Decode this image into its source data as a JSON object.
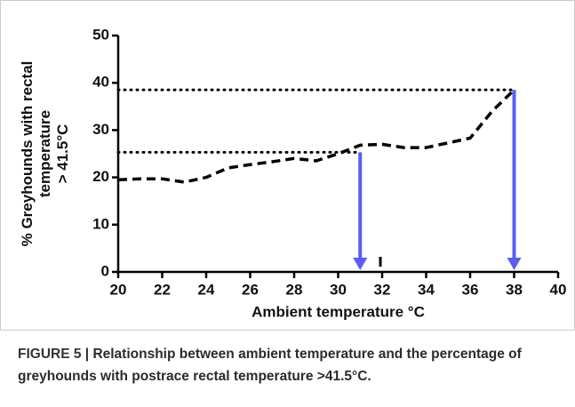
{
  "chart_data": {
    "type": "line",
    "ylabel": [
      "% Greyhounds with rectal",
      "temperature",
      "> 41.5°C"
    ],
    "xlabel": "Ambient temperature °C",
    "x": [
      20,
      21,
      22,
      23,
      24,
      25,
      26,
      27,
      28,
      29,
      30,
      31,
      32,
      33,
      34,
      35,
      36,
      37,
      38
    ],
    "series": [
      {
        "name": "% Greyhounds",
        "color": "#000000",
        "values": [
          19.5,
          19.7,
          19.7,
          19,
          20,
          22,
          22.7,
          23.3,
          24,
          23.5,
          25,
          26.8,
          27,
          26.3,
          26.3,
          27.3,
          28.3,
          34,
          38.5
        ]
      }
    ],
    "annotations": [
      {
        "x": 31,
        "y": 25.3
      },
      {
        "x": 38,
        "y": 38.5
      }
    ],
    "annotation_color": "#5a5cf2",
    "xlim": [
      20,
      40
    ],
    "xticks": [
      20,
      22,
      24,
      26,
      28,
      30,
      32,
      34,
      36,
      38,
      40
    ],
    "ylim": [
      0,
      50
    ],
    "yticks": [
      0,
      10,
      20,
      30,
      40,
      50
    ]
  },
  "caption": {
    "label": "FIGURE 5",
    "text": "Relationship between ambient temperature and the percentage of greyhounds with postrace rectal temperature >41.5°C."
  }
}
